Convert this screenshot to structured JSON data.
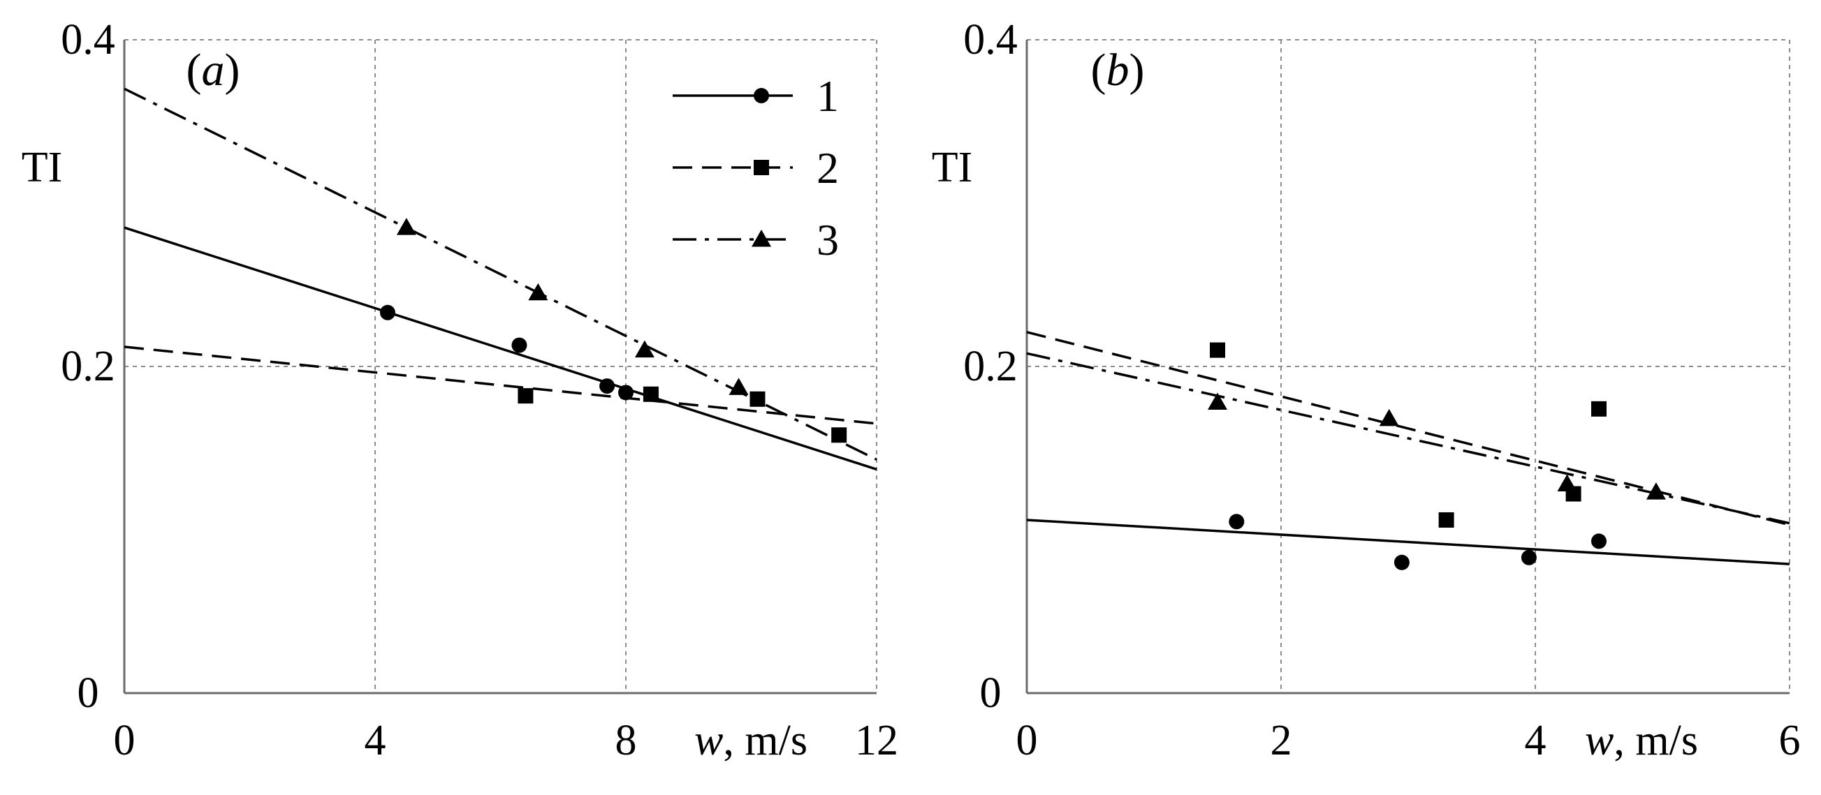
{
  "chart_data": [
    {
      "type": "scatter",
      "panel_label": "a",
      "xlabel": "w, m/s",
      "ylabel": "TI",
      "xlim": [
        0,
        12
      ],
      "ylim": [
        0,
        0.4
      ],
      "xticks": [
        0,
        4,
        8,
        12
      ],
      "yticks": [
        0,
        0.2,
        0.4
      ],
      "xtick_labels": [
        "0",
        "4",
        "8",
        "12"
      ],
      "ytick_labels": [
        "0",
        "0.2",
        "0.4"
      ],
      "grid": true,
      "legend": {
        "placement": "top-right",
        "entries": [
          {
            "label": "1",
            "series": 1
          },
          {
            "label": "2",
            "series": 2
          },
          {
            "label": "3",
            "series": 3
          }
        ]
      },
      "series": [
        {
          "name": "1",
          "marker": "circle",
          "line": "solid",
          "points": [
            [
              4.2,
              0.233
            ],
            [
              6.3,
              0.213
            ],
            [
              7.7,
              0.188
            ],
            [
              8.0,
              0.184
            ]
          ],
          "fit": [
            [
              0,
              0.285
            ],
            [
              12,
              0.137
            ]
          ]
        },
        {
          "name": "2",
          "marker": "square",
          "line": "dashed",
          "points": [
            [
              6.4,
              0.182
            ],
            [
              8.4,
              0.183
            ],
            [
              10.1,
              0.18
            ],
            [
              11.4,
              0.158
            ]
          ],
          "fit": [
            [
              0,
              0.212
            ],
            [
              12,
              0.165
            ]
          ]
        },
        {
          "name": "3",
          "marker": "triangle",
          "line": "dashdot",
          "points": [
            [
              4.5,
              0.285
            ],
            [
              6.6,
              0.245
            ],
            [
              8.3,
              0.21
            ],
            [
              9.8,
              0.187
            ]
          ],
          "fit": [
            [
              0,
              0.37
            ],
            [
              12,
              0.143
            ]
          ]
        }
      ]
    },
    {
      "type": "scatter",
      "panel_label": "b",
      "xlabel": "w, m/s",
      "ylabel": "TI",
      "xlim": [
        0,
        6
      ],
      "ylim": [
        0,
        0.4
      ],
      "xticks": [
        0,
        2,
        4,
        6
      ],
      "yticks": [
        0,
        0.2,
        0.4
      ],
      "xtick_labels": [
        "0",
        "2",
        "4",
        "6"
      ],
      "ytick_labels": [
        "0",
        "0.2",
        "0.4"
      ],
      "grid": true,
      "series": [
        {
          "name": "1",
          "marker": "circle",
          "line": "solid",
          "points": [
            [
              1.65,
              0.105
            ],
            [
              2.95,
              0.08
            ],
            [
              3.95,
              0.083
            ],
            [
              4.5,
              0.093
            ]
          ],
          "fit": [
            [
              0,
              0.106
            ],
            [
              6,
              0.079
            ]
          ]
        },
        {
          "name": "2",
          "marker": "square",
          "line": "dashed",
          "points": [
            [
              1.5,
              0.21
            ],
            [
              3.3,
              0.106
            ],
            [
              4.3,
              0.122
            ],
            [
              4.5,
              0.174
            ]
          ],
          "fit": [
            [
              0,
              0.221
            ],
            [
              6,
              0.103
            ]
          ]
        },
        {
          "name": "3",
          "marker": "triangle",
          "line": "dashdot",
          "points": [
            [
              1.5,
              0.178
            ],
            [
              2.85,
              0.168
            ],
            [
              4.25,
              0.128
            ],
            [
              4.95,
              0.123
            ]
          ],
          "fit": [
            [
              0,
              0.208
            ],
            [
              6,
              0.104
            ]
          ]
        }
      ]
    }
  ]
}
